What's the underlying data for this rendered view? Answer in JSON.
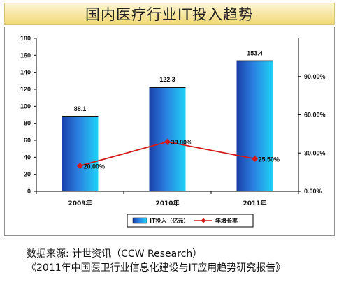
{
  "title": "国内医疗行业IT投入趋势",
  "chart_data": {
    "type": "bar",
    "categories": [
      "2009年",
      "2010年",
      "2011年"
    ],
    "series": [
      {
        "name": "IT投入（亿元）",
        "type": "bar",
        "axis": "left",
        "values": [
          88.1,
          122.3,
          153.4
        ],
        "labels": [
          "88.1",
          "122.3",
          "153.4"
        ]
      },
      {
        "name": "年增长率",
        "type": "line",
        "axis": "right",
        "values": [
          20.0,
          38.8,
          25.5
        ],
        "labels": [
          "20.00%",
          "38.80%",
          "25.50%"
        ]
      }
    ],
    "y_left": {
      "min": 0,
      "max": 180,
      "ticks": [
        "0",
        "20",
        "40",
        "60",
        "80",
        "100",
        "120",
        "140",
        "160",
        "180"
      ]
    },
    "y_right": {
      "min": 0,
      "max": 120,
      "ticks": [
        "0.00%",
        "30.00%",
        "60.00%",
        "90.00%"
      ],
      "tick_values": [
        0,
        30,
        60,
        90
      ]
    },
    "legend_position": "bottom",
    "colors": {
      "bar": "#1ec8f2",
      "bar_dark": "#1a3fa8",
      "line": "#d41a1a"
    }
  },
  "source": {
    "line1": "数据来源: 计世资讯（CCW Research）",
    "line2": "《2011年中国医卫行业信息化建设与IT应用趋势研究报告》"
  }
}
